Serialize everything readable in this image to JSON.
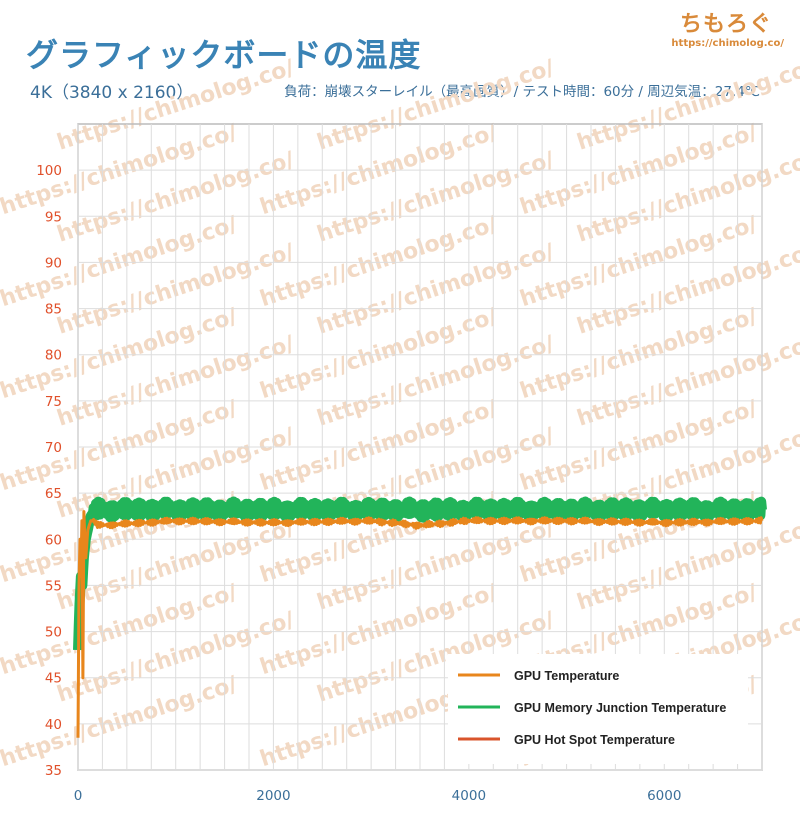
{
  "header": {
    "title": "グラフィックボードの温度",
    "resolution": "4K（3840 x 2160）",
    "conditions": "負荷：崩壊スターレイル（最高画質）/ テスト時間：60分 / 周辺気温：27.4℃"
  },
  "branding": {
    "logo": "ちもろぐ",
    "url": "https://chimolog.co/",
    "watermark": "https://chimolog.co/"
  },
  "colors": {
    "gpu_temp": "#e8861c",
    "mem_junction": "#22b45a",
    "hot_spot": "#d9542b",
    "grid": "#dddddd",
    "ytick": "#e0502a",
    "xtick": "#3b6f99"
  },
  "chart_data": {
    "type": "line",
    "title": "グラフィックボードの温度",
    "xlabel": "",
    "ylabel": "",
    "xlim": [
      0,
      7000
    ],
    "ylim": [
      35,
      105
    ],
    "xticks": [
      0,
      2000,
      4000,
      6000
    ],
    "yticks": [
      35,
      40,
      45,
      50,
      55,
      60,
      65,
      70,
      75,
      80,
      85,
      90,
      95,
      100
    ],
    "grid": true,
    "legend_position": "bottom-right",
    "series": [
      {
        "name": "GPU Temperature",
        "color_key": "gpu_temp",
        "points": [
          [
            0,
            38.5
          ],
          [
            10,
            55
          ],
          [
            20,
            60
          ],
          [
            30,
            56
          ],
          [
            40,
            62
          ],
          [
            50,
            45
          ],
          [
            60,
            63
          ],
          [
            70,
            60
          ],
          [
            80,
            58
          ],
          [
            100,
            61
          ],
          [
            130,
            62
          ],
          [
            160,
            62
          ],
          [
            200,
            61.5
          ],
          [
            1000,
            62
          ],
          [
            2000,
            61.8
          ],
          [
            3000,
            62
          ],
          [
            3500,
            61.5
          ],
          [
            4000,
            62
          ],
          [
            5000,
            62
          ],
          [
            6000,
            61.8
          ],
          [
            7000,
            62
          ]
        ]
      },
      {
        "name": "GPU Memory Junction Temperature",
        "color_key": "mem_junction",
        "points": [
          [
            0,
            48
          ],
          [
            15,
            53
          ],
          [
            30,
            56
          ],
          [
            45,
            55
          ],
          [
            60,
            58
          ],
          [
            80,
            60
          ],
          [
            100,
            61
          ],
          [
            130,
            62.5
          ],
          [
            160,
            63
          ],
          [
            200,
            63.2
          ],
          [
            1000,
            63.2
          ],
          [
            2000,
            63.2
          ],
          [
            3000,
            63.2
          ],
          [
            4000,
            63.2
          ],
          [
            5000,
            63.2
          ],
          [
            6000,
            63.2
          ],
          [
            7000,
            63.2
          ]
        ]
      },
      {
        "name": "GPU Hot Spot Temperature",
        "color_key": "hot_spot",
        "points": []
      }
    ]
  }
}
